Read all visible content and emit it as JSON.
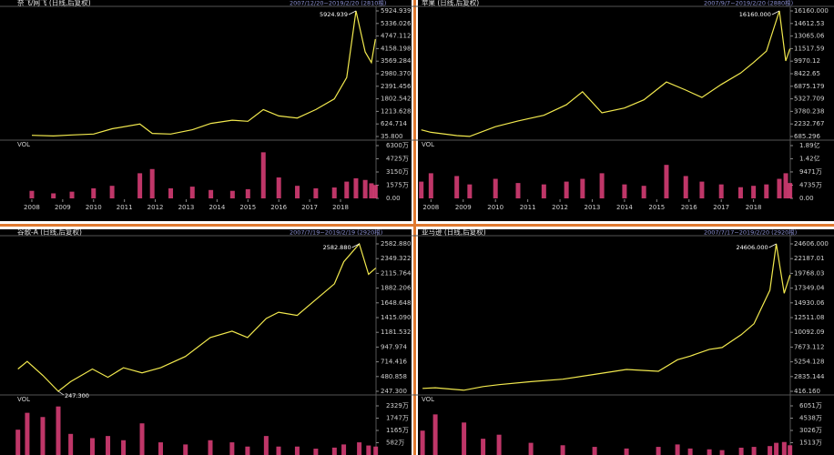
{
  "chart_data": [
    {
      "type": "line",
      "title": "奈飞/网飞 (日线,后复权)",
      "subtitle": "2007/12/20~2019/2/20 (2810根)",
      "max_label": "5924.939",
      "volume_label": "VOL",
      "x": [
        2008.0,
        2008.7,
        2009.3,
        2010.0,
        2010.6,
        2011.5,
        2011.9,
        2012.5,
        2013.2,
        2013.8,
        2014.5,
        2015.0,
        2015.5,
        2016.0,
        2016.6,
        2017.2,
        2017.8,
        2018.2,
        2018.5,
        2018.8,
        2019.0,
        2019.13
      ],
      "xlim": [
        2007.5,
        2019.15
      ],
      "xticks": [
        2008,
        2009,
        2010,
        2011,
        2012,
        2013,
        2014,
        2015,
        2016,
        2017,
        2018
      ],
      "ylim": [
        35.8,
        5924.939
      ],
      "yticks": [
        5924.939,
        5336.026,
        4747.112,
        4158.198,
        3569.284,
        {
          "value": 2980.37,
          "label": "2980.370"
        },
        2391.456,
        1802.542,
        1213.628,
        624.714,
        {
          "value": 35.8,
          "label": "35.800"
        }
      ],
      "y2lim": [
        0,
        6300
      ],
      "y2ticks": [
        {
          "value": 6300,
          "label": "6300万"
        },
        {
          "value": 4725,
          "label": "4725万"
        },
        {
          "value": 3150,
          "label": "3150万"
        },
        {
          "value": 1575,
          "label": "1575万"
        },
        {
          "value": 0,
          "label": "0.00"
        }
      ],
      "series": [
        {
          "color": "#f2e94e",
          "values": [
            90,
            60,
            110,
            150,
            400,
            620,
            180,
            150,
            350,
            650,
            800,
            750,
            1300,
            1000,
            900,
            1300,
            1800,
            2800,
            5924.939,
            4000,
            3500,
            4600
          ]
        },
        {
          "color": "#e0407a",
          "axis": "y2",
          "values": [
            900,
            600,
            800,
            1200,
            1500,
            3000,
            3500,
            1200,
            1400,
            1000,
            900,
            1100,
            5500,
            2500,
            1500,
            1200,
            1300,
            2000,
            2400,
            2200,
            1800,
            1600
          ]
        }
      ]
    },
    {
      "type": "line",
      "title": "苹果 (日线,后复权)",
      "subtitle": "2007/9/7~2019/2/20 (2880根)",
      "max_label": "16160.000",
      "volume_label": "VOL",
      "x": [
        2007.7,
        2008.0,
        2008.8,
        2009.2,
        2010.0,
        2010.7,
        2011.5,
        2012.2,
        2012.7,
        2013.3,
        2014.0,
        2014.6,
        2015.3,
        2015.9,
        2016.4,
        2017.0,
        2017.6,
        2018.0,
        2018.4,
        2018.8,
        2019.0,
        2019.13
      ],
      "xlim": [
        2007.68,
        2019.14
      ],
      "xticks": [
        2008,
        2009,
        2010,
        2011,
        2012,
        2013,
        2014,
        2015,
        2016,
        2017,
        2018
      ],
      "ylim": [
        685.296,
        16160
      ],
      "yticks": [
        {
          "value": 16160,
          "label": "16160.000"
        },
        14612.53,
        13065.06,
        11517.59,
        9970.12,
        8422.65,
        6875.179,
        5327.709,
        3780.238,
        2232.767,
        685.296
      ],
      "y2lim": [
        0,
        18900
      ],
      "y2ticks": [
        {
          "value": 18900,
          "label": "1.89亿"
        },
        {
          "value": 14200,
          "label": "1.42亿"
        },
        {
          "value": 9471,
          "label": "9471万"
        },
        {
          "value": 4735,
          "label": "4735万"
        },
        {
          "value": 0,
          "label": "0.00"
        }
      ],
      "series": [
        {
          "color": "#f2e94e",
          "values": [
            1500,
            1200,
            800,
            700,
            1900,
            2600,
            3300,
            4600,
            6200,
            3600,
            4200,
            5200,
            7400,
            6400,
            5500,
            7100,
            8500,
            9800,
            11200,
            16160,
            10000,
            11500
          ]
        },
        {
          "color": "#e0407a",
          "axis": "y2",
          "values": [
            6000,
            9000,
            8000,
            5000,
            7000,
            5500,
            5000,
            6000,
            7000,
            9000,
            5000,
            4500,
            12000,
            8000,
            6000,
            5000,
            4000,
            4500,
            5000,
            7000,
            9000,
            5500
          ]
        }
      ]
    },
    {
      "type": "line",
      "title": "谷歌-A (日线,后复权)",
      "subtitle": "2007/7/19~2019/2/19 (2920根)",
      "max_label": "2582.880",
      "min_label": "247.300",
      "volume_label": "VOL",
      "x": [
        2007.6,
        2007.9,
        2008.4,
        2008.9,
        2009.3,
        2010.0,
        2010.5,
        2011.0,
        2011.6,
        2012.2,
        2013.0,
        2013.8,
        2014.5,
        2015.0,
        2015.6,
        2016.0,
        2016.6,
        2017.2,
        2017.8,
        2018.1,
        2018.6,
        2018.9,
        2019.13
      ],
      "xlim": [
        2007.55,
        2019.14
      ],
      "ylim": [
        247.3,
        2582.88
      ],
      "yticks": [
        {
          "value": 2582.88,
          "label": "2582.880"
        },
        2349.322,
        2115.764,
        1882.206,
        1648.648,
        {
          "value": 1415.09,
          "label": "1415.090"
        },
        1181.532,
        947.974,
        714.416,
        480.858,
        {
          "value": 247.3,
          "label": "247.300"
        }
      ],
      "y2lim": [
        0,
        2329
      ],
      "y2ticks": [
        {
          "value": 2329,
          "label": "2329万"
        },
        {
          "value": 1747,
          "label": "1747万"
        },
        {
          "value": 1165,
          "label": "1165万"
        },
        {
          "value": 582,
          "label": "582万"
        }
      ],
      "series": [
        {
          "color": "#f2e94e",
          "values": [
            600,
            720,
            500,
            247.3,
            400,
            600,
            470,
            620,
            540,
            620,
            800,
            1100,
            1200,
            1100,
            1400,
            1500,
            1450,
            1700,
            1950,
            2300,
            2582.88,
            2100,
            2200
          ]
        },
        {
          "color": "#e0407a",
          "axis": "y2",
          "values": [
            1200,
            2000,
            1800,
            2300,
            1000,
            800,
            900,
            700,
            1500,
            600,
            500,
            700,
            600,
            400,
            900,
            400,
            400,
            300,
            350,
            500,
            600,
            450,
            400
          ]
        }
      ]
    },
    {
      "type": "line",
      "title": "亚马逊 (日线,后复权)",
      "subtitle": "2007/7/17~2019/2/20 (2920根)",
      "max_label": "24606.000",
      "volume_label": "VOL",
      "x": [
        2007.6,
        2008.0,
        2008.9,
        2009.5,
        2010.0,
        2011.0,
        2012.0,
        2013.0,
        2014.0,
        2015.0,
        2015.6,
        2016.0,
        2016.6,
        2017.0,
        2017.6,
        2018.0,
        2018.5,
        2018.7,
        2018.95,
        2019.13
      ],
      "xlim": [
        2007.54,
        2019.14
      ],
      "ylim": [
        416.16,
        24606
      ],
      "yticks": [
        {
          "value": 24606,
          "label": "24606.000"
        },
        22187.01,
        19768.03,
        17349.04,
        14930.06,
        12511.08,
        10092.09,
        7673.112,
        5254.128,
        2835.144,
        {
          "value": 416.16,
          "label": "416.160"
        }
      ],
      "y2lim": [
        0,
        6051
      ],
      "y2ticks": [
        {
          "value": 6051,
          "label": "6051万"
        },
        {
          "value": 4538,
          "label": "4538万"
        },
        {
          "value": 3026,
          "label": "3026万"
        },
        {
          "value": 1513,
          "label": "1513万"
        }
      ],
      "series": [
        {
          "color": "#f2e94e",
          "values": [
            900,
            1000,
            600,
            1200,
            1500,
            2000,
            2400,
            3200,
            4000,
            3700,
            5600,
            6200,
            7300,
            7600,
            9700,
            11500,
            17000,
            24606,
            16500,
            19500
          ]
        },
        {
          "color": "#e0407a",
          "axis": "y2",
          "values": [
            3000,
            5000,
            4000,
            2000,
            2500,
            1500,
            1200,
            1000,
            800,
            1000,
            1300,
            800,
            700,
            600,
            900,
            1000,
            1100,
            1500,
            1600,
            1200
          ]
        }
      ]
    }
  ]
}
